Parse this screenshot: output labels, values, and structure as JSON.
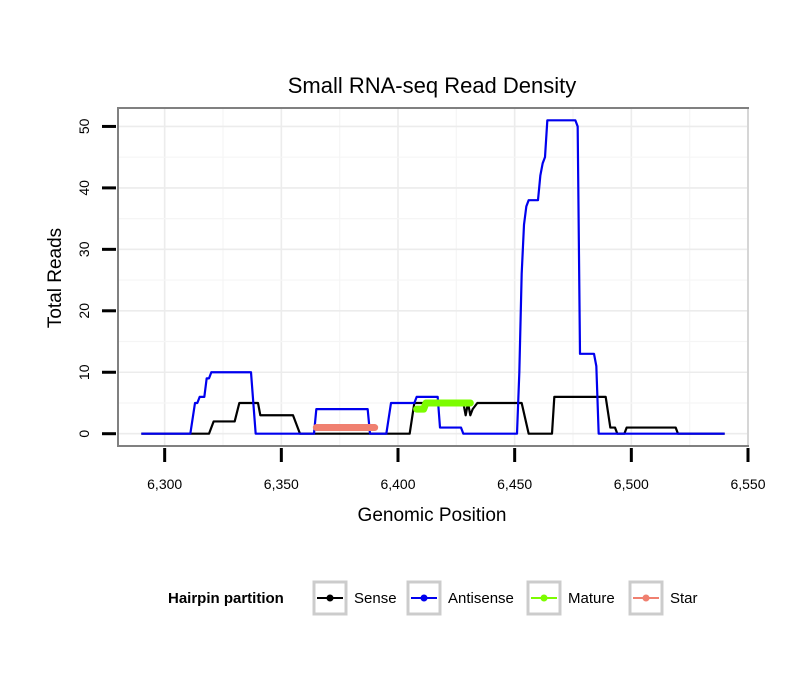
{
  "chart_data": {
    "type": "line",
    "title": "Small RNA-seq Read Density",
    "xlabel": "Genomic Position",
    "ylabel": "Total Reads",
    "xlim": [
      6280,
      6550
    ],
    "ylim": [
      -2,
      53
    ],
    "x_ticks": [
      6300,
      6350,
      6400,
      6450,
      6500,
      6550
    ],
    "x_tick_labels": [
      "6,300",
      "6,350",
      "6,400",
      "6,450",
      "6,500",
      "6,550"
    ],
    "y_ticks": [
      0,
      10,
      20,
      30,
      40,
      50
    ],
    "y_tick_labels": [
      "0",
      "10",
      "20",
      "30",
      "40",
      "50"
    ],
    "grid": true,
    "legend_title": "Hairpin partition",
    "legend_position": "bottom",
    "series": [
      {
        "name": "Sense",
        "color": "#000000",
        "points": [
          [
            6290,
            0
          ],
          [
            6319,
            0
          ],
          [
            6321,
            2
          ],
          [
            6330,
            2
          ],
          [
            6332,
            5
          ],
          [
            6340,
            5
          ],
          [
            6341,
            3
          ],
          [
            6355,
            3
          ],
          [
            6358,
            0
          ],
          [
            6405,
            0
          ],
          [
            6407,
            5
          ],
          [
            6425,
            5
          ],
          [
            6428,
            5
          ],
          [
            6429,
            3
          ],
          [
            6430,
            5
          ],
          [
            6431,
            3
          ],
          [
            6432,
            4
          ],
          [
            6434,
            5
          ],
          [
            6450,
            5
          ],
          [
            6453,
            5
          ],
          [
            6456,
            0
          ],
          [
            6466,
            0
          ],
          [
            6467,
            6
          ],
          [
            6489,
            6
          ],
          [
            6491,
            1
          ],
          [
            6493,
            1
          ],
          [
            6494,
            0
          ],
          [
            6497,
            0
          ],
          [
            6498,
            1
          ],
          [
            6519,
            1
          ],
          [
            6520,
            0
          ],
          [
            6540,
            0
          ]
        ]
      },
      {
        "name": "Antisense",
        "color": "#0000ee",
        "points": [
          [
            6290,
            0
          ],
          [
            6311,
            0
          ],
          [
            6313,
            5
          ],
          [
            6314,
            5
          ],
          [
            6315,
            6
          ],
          [
            6317,
            6
          ],
          [
            6318,
            9
          ],
          [
            6319,
            9
          ],
          [
            6320,
            10
          ],
          [
            6337,
            10
          ],
          [
            6338,
            5
          ],
          [
            6339,
            0
          ],
          [
            6364,
            0
          ],
          [
            6365,
            4
          ],
          [
            6387,
            4
          ],
          [
            6388,
            0
          ],
          [
            6395,
            0
          ],
          [
            6397,
            5
          ],
          [
            6407,
            5
          ],
          [
            6408,
            6
          ],
          [
            6417,
            6
          ],
          [
            6418,
            1
          ],
          [
            6427,
            1
          ],
          [
            6428,
            0
          ],
          [
            6451,
            0
          ],
          [
            6452,
            10
          ],
          [
            6453,
            26
          ],
          [
            6454,
            34
          ],
          [
            6455,
            37
          ],
          [
            6456,
            38
          ],
          [
            6460,
            38
          ],
          [
            6461,
            42
          ],
          [
            6462,
            44
          ],
          [
            6463,
            45
          ],
          [
            6464,
            51
          ],
          [
            6474,
            51
          ],
          [
            6476,
            51
          ],
          [
            6477,
            50
          ],
          [
            6478,
            13
          ],
          [
            6484,
            13
          ],
          [
            6485,
            11
          ],
          [
            6486,
            0
          ],
          [
            6540,
            0
          ]
        ]
      },
      {
        "name": "Mature",
        "color": "#7cfc00",
        "points": [
          [
            6408,
            4
          ],
          [
            6411,
            4
          ],
          [
            6412,
            5
          ],
          [
            6431,
            5
          ]
        ]
      },
      {
        "name": "Star",
        "color": "#f08070",
        "points": [
          [
            6365,
            1
          ],
          [
            6390,
            1
          ]
        ]
      }
    ]
  }
}
